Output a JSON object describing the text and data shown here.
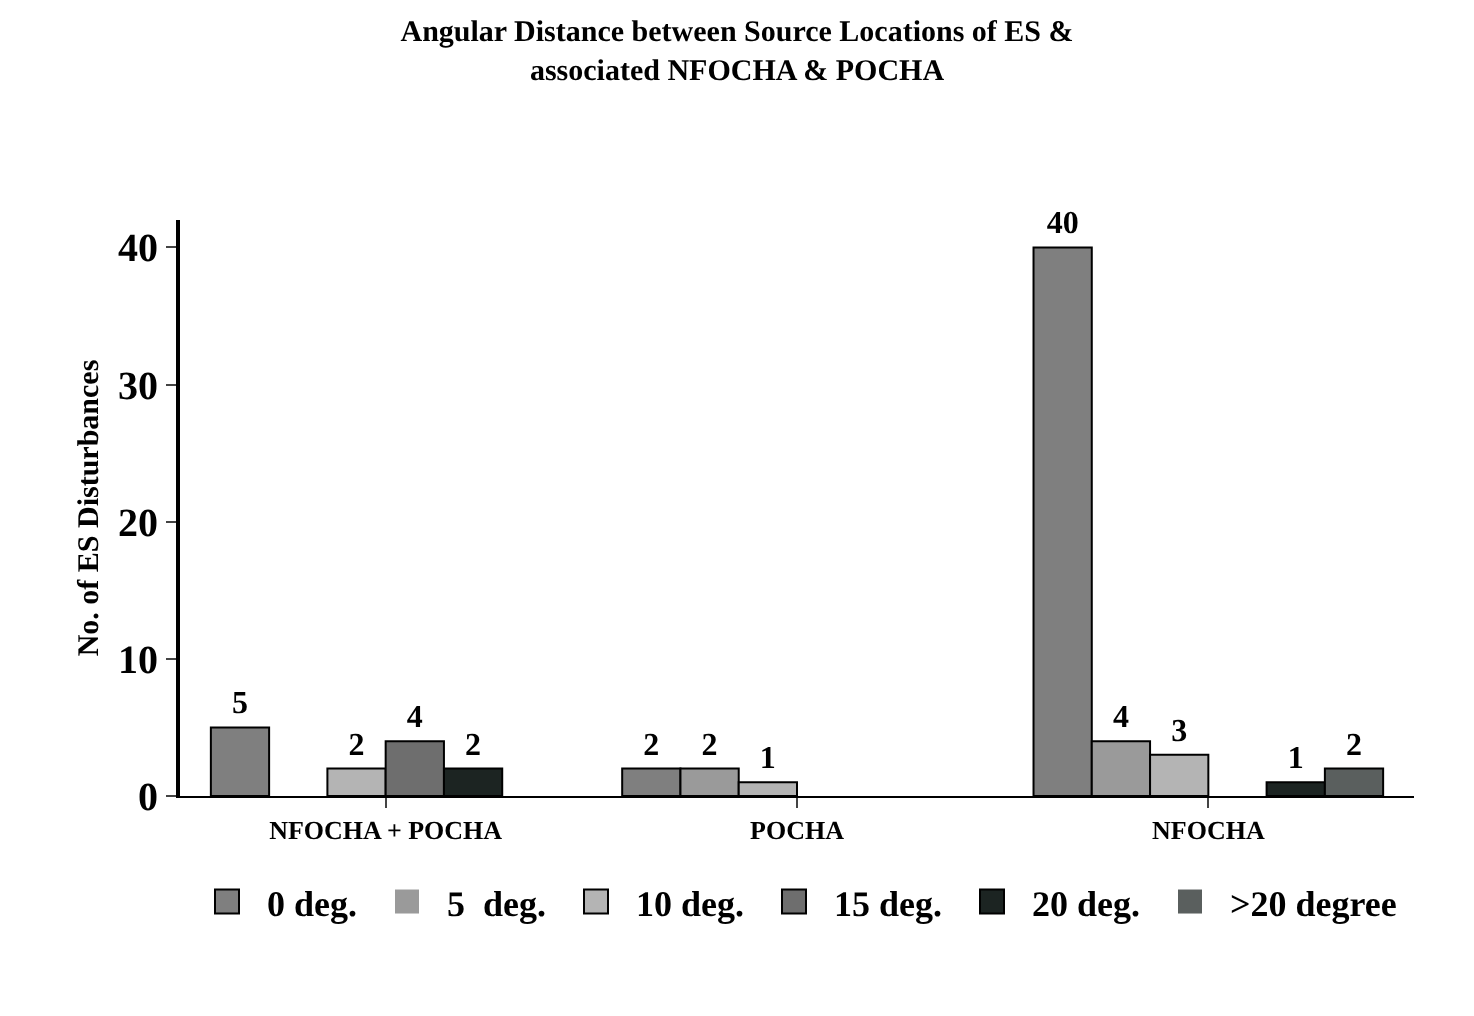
{
  "chart_data": {
    "type": "bar",
    "title": "Angular Distance between Source Locations of ES & associated NFOCHA & POCHA",
    "ylabel": "No. of ES Disturbances",
    "categories": [
      "NFOCHA + POCHA",
      "POCHA",
      "NFOCHA"
    ],
    "series": [
      {
        "name": "0 deg.",
        "color": "#7f7f7f",
        "values": [
          5,
          2,
          40
        ],
        "value_labels": [
          "5",
          "2",
          "40"
        ]
      },
      {
        "name": "5  deg.",
        "color": "#9a9a9a",
        "values": [
          0,
          2,
          4
        ],
        "value_labels": [
          null,
          "2",
          "4"
        ]
      },
      {
        "name": "10 deg.",
        "color": "#b4b4b4",
        "values": [
          2,
          1,
          3
        ],
        "value_labels": [
          "2",
          "1",
          "3"
        ]
      },
      {
        "name": "15 deg.",
        "color": "#6e6e6e",
        "values": [
          4,
          0,
          0
        ],
        "value_labels": [
          "4",
          null,
          null
        ]
      },
      {
        "name": "20 deg.",
        "color": "#1c2422",
        "values": [
          2,
          0,
          1
        ],
        "value_labels": [
          "2",
          null,
          "1"
        ]
      },
      {
        "name": ">20 degree",
        "color": "#5a5f5e",
        "values": [
          0,
          0,
          2
        ],
        "value_labels": [
          null,
          null,
          "2"
        ]
      }
    ],
    "ylim": [
      0,
      42
    ],
    "yticks": [
      0,
      10,
      20,
      30,
      40
    ],
    "grid": false,
    "legend": "bottom"
  }
}
